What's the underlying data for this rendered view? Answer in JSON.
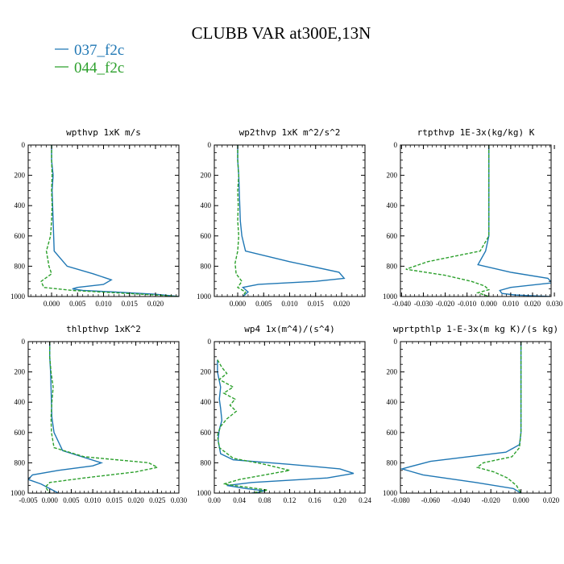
{
  "figure": {
    "title": "CLUBB VAR at300E,13N"
  },
  "legend": [
    {
      "label": "037_f2c",
      "color": "#1f77b4",
      "dash": "solid"
    },
    {
      "label": "044_f2c",
      "color": "#2ca02c",
      "dash": "dashed"
    }
  ],
  "chart_data": [
    {
      "type": "line",
      "title": "wpthvp  1xK m/s",
      "xlim": [
        -0.0045,
        0.0245
      ],
      "xticks": [
        0.0,
        0.005,
        0.01,
        0.015,
        0.02
      ],
      "xtick_labels": [
        "0.000",
        "0.005",
        "0.010",
        "0.015",
        "0.020"
      ],
      "ylim": [
        0,
        1000
      ],
      "y_inverted": true,
      "yticks": [
        0,
        200,
        400,
        600,
        800,
        1000
      ],
      "series": [
        {
          "x": [
            0.0,
            0.0,
            0.0003,
            0.0001,
            0.0002,
            0.0003,
            0.0004,
            0.0005,
            0.003,
            0.008,
            0.0115,
            0.01,
            0.005,
            0.004,
            0.006,
            0.012,
            0.02,
            0.0245
          ],
          "y": [
            0,
            100,
            200,
            300,
            400,
            500,
            600,
            700,
            800,
            850,
            890,
            920,
            940,
            950,
            960,
            970,
            985,
            1000
          ]
        },
        {
          "x": [
            0.0,
            0.0,
            0.0001,
            0.0,
            0.0001,
            0.0,
            -0.0002,
            -0.001,
            -0.0005,
            0.0,
            -0.002,
            -0.0015,
            0.004,
            0.012,
            0.02,
            0.0245
          ],
          "y": [
            0,
            100,
            200,
            300,
            400,
            500,
            600,
            700,
            800,
            850,
            900,
            940,
            960,
            975,
            990,
            1000
          ]
        }
      ]
    },
    {
      "type": "line",
      "title": "wp2thvp  1xK m^2/s^2",
      "xlim": [
        -0.0045,
        0.0245
      ],
      "xticks": [
        0.0,
        0.005,
        0.01,
        0.015,
        0.02
      ],
      "xtick_labels": [
        "0.000",
        "0.005",
        "0.010",
        "0.015",
        "0.020"
      ],
      "ylim": [
        0,
        1000
      ],
      "y_inverted": true,
      "yticks": [
        0,
        200,
        400,
        600,
        800,
        1000
      ],
      "series": [
        {
          "x": [
            0.0,
            0.0,
            0.0002,
            0.0003,
            0.0004,
            0.0005,
            0.0008,
            0.0015,
            0.01,
            0.0195,
            0.0205,
            0.015,
            0.004,
            0.001,
            0.002,
            0.001
          ],
          "y": [
            0,
            100,
            200,
            300,
            400,
            500,
            600,
            700,
            770,
            840,
            880,
            900,
            920,
            940,
            970,
            1000
          ]
        },
        {
          "x": [
            0.0,
            0.0,
            0.0002,
            0.0,
            0.0001,
            0.0,
            0.0002,
            0.0,
            -0.0005,
            -0.0003,
            0.0008,
            0.0,
            0.0015,
            0.001
          ],
          "y": [
            0,
            100,
            200,
            300,
            400,
            500,
            600,
            700,
            780,
            850,
            900,
            940,
            970,
            1000
          ]
        }
      ]
    },
    {
      "type": "line",
      "title": "rtpthvp  1E-3x(kg/kg) K",
      "xlim": [
        -0.0405,
        0.0285
      ],
      "xticks": [
        -0.04,
        -0.03,
        -0.02,
        -0.01,
        0.0,
        0.01,
        0.02,
        0.03
      ],
      "xtick_labels": [
        "-0.040",
        "-0.030",
        "-0.020",
        "-0.010",
        "0.000",
        "0.010",
        "0.020",
        "0.030"
      ],
      "ylim": [
        0,
        1000
      ],
      "y_inverted": true,
      "yticks": [
        0,
        200,
        400,
        600,
        800,
        1000
      ],
      "series": [
        {
          "x": [
            0.0,
            0.0,
            0.0,
            0.0,
            0.0,
            0.0,
            0.0,
            -0.0015,
            -0.005,
            0.01,
            0.027,
            0.029,
            0.01,
            0.005,
            0.006,
            0.012,
            0.02,
            0.028
          ],
          "y": [
            0,
            100,
            200,
            300,
            400,
            500,
            600,
            700,
            790,
            840,
            880,
            910,
            940,
            960,
            980,
            990,
            995,
            1000
          ]
        },
        {
          "x": [
            0.0,
            0.0,
            0.0,
            0.0,
            0.0,
            0.0,
            0.0,
            -0.004,
            -0.028,
            -0.038,
            -0.02,
            -0.008,
            -0.002,
            0.0,
            -0.005,
            0.0
          ],
          "y": [
            0,
            100,
            200,
            300,
            400,
            500,
            600,
            700,
            770,
            820,
            860,
            900,
            930,
            955,
            975,
            1000
          ]
        }
      ]
    },
    {
      "type": "line",
      "title": "thlpthvp  1xK^2",
      "xlim": [
        -0.005,
        0.03
      ],
      "xticks": [
        -0.005,
        0.0,
        0.005,
        0.01,
        0.015,
        0.02,
        0.025,
        0.03
      ],
      "xtick_labels": [
        "-0.005",
        "0.000",
        "0.005",
        "0.010",
        "0.015",
        "0.020",
        "0.025",
        "0.030"
      ],
      "ylim": [
        0,
        1000
      ],
      "y_inverted": true,
      "yticks": [
        0,
        200,
        400,
        600,
        800,
        1000
      ],
      "series": [
        {
          "x": [
            0.0,
            0.0,
            0.0002,
            0.0003,
            0.0004,
            0.0005,
            0.001,
            0.003,
            0.012,
            0.01,
            0.002,
            -0.004,
            -0.005,
            -0.002,
            0.0,
            0.002
          ],
          "y": [
            0,
            100,
            200,
            300,
            400,
            500,
            600,
            720,
            800,
            820,
            850,
            880,
            910,
            940,
            970,
            1000
          ]
        },
        {
          "x": [
            0.0,
            0.0,
            0.0003,
            0.0008,
            0.0005,
            0.0003,
            0.0004,
            0.001,
            0.008,
            0.023,
            0.025,
            0.02,
            0.008,
            0.0,
            -0.001,
            0.0
          ],
          "y": [
            0,
            100,
            200,
            300,
            400,
            500,
            600,
            700,
            760,
            800,
            830,
            860,
            900,
            930,
            960,
            1000
          ]
        }
      ]
    },
    {
      "type": "line",
      "title": "wp4  1x(m^4)/(s^4)",
      "xlim": [
        0.0,
        0.24
      ],
      "xticks": [
        0.0,
        0.04,
        0.08,
        0.12,
        0.16,
        0.2,
        0.24
      ],
      "xtick_labels": [
        "0.00",
        "0.04",
        "0.08",
        "0.12",
        "0.16",
        "0.20",
        "0.24"
      ],
      "ylim": [
        0,
        1000
      ],
      "y_inverted": true,
      "yticks": [
        0,
        200,
        400,
        600,
        800,
        1000
      ],
      "series": [
        {
          "x": [
            0.005,
            0.005,
            0.008,
            0.01,
            0.008,
            0.01,
            0.012,
            0.008,
            0.006,
            0.01,
            0.03,
            0.12,
            0.2,
            0.222,
            0.18,
            0.06,
            0.02,
            0.05,
            0.08,
            0.07,
            0.06
          ],
          "y": [
            120,
            200,
            260,
            300,
            380,
            440,
            520,
            580,
            650,
            740,
            780,
            810,
            840,
            870,
            900,
            930,
            950,
            970,
            985,
            995,
            1000
          ]
        },
        {
          "x": [
            0.005,
            0.012,
            0.02,
            0.008,
            0.03,
            0.015,
            0.033,
            0.025,
            0.035,
            0.02,
            0.01,
            0.005,
            0.008,
            0.03,
            0.08,
            0.12,
            0.08,
            0.04,
            0.015,
            0.05,
            0.085,
            0.06
          ],
          "y": [
            120,
            170,
            210,
            250,
            300,
            340,
            380,
            420,
            460,
            510,
            560,
            620,
            700,
            770,
            810,
            850,
            880,
            910,
            940,
            960,
            980,
            1000
          ]
        }
      ]
    },
    {
      "type": "line",
      "title": "wprtpthlp  1-E-3x(m kg K)/(s kg)",
      "xlim": [
        -0.08,
        0.02
      ],
      "xticks": [
        -0.08,
        -0.06,
        -0.04,
        -0.02,
        0.0,
        0.02
      ],
      "xtick_labels": [
        "-0.080",
        "-0.060",
        "-0.040",
        "-0.020",
        "0.000",
        "0.020"
      ],
      "ylim": [
        0,
        1000
      ],
      "y_inverted": true,
      "yticks": [
        0,
        200,
        400,
        600,
        800,
        1000
      ],
      "series": [
        {
          "x": [
            0.0,
            0.0,
            0.0,
            0.0,
            0.0,
            0.0,
            0.0,
            -0.001,
            -0.01,
            -0.06,
            -0.079,
            -0.065,
            -0.03,
            -0.005,
            0.0
          ],
          "y": [
            0,
            100,
            200,
            300,
            400,
            500,
            600,
            680,
            730,
            790,
            840,
            880,
            930,
            970,
            1000
          ]
        },
        {
          "x": [
            0.0,
            0.0,
            0.0,
            0.0,
            0.0,
            0.0,
            0.0,
            -0.001,
            -0.006,
            -0.025,
            -0.029,
            -0.018,
            -0.009,
            -0.003,
            0.0
          ],
          "y": [
            0,
            100,
            200,
            300,
            400,
            500,
            600,
            700,
            760,
            800,
            830,
            860,
            900,
            950,
            1000
          ]
        }
      ]
    }
  ]
}
